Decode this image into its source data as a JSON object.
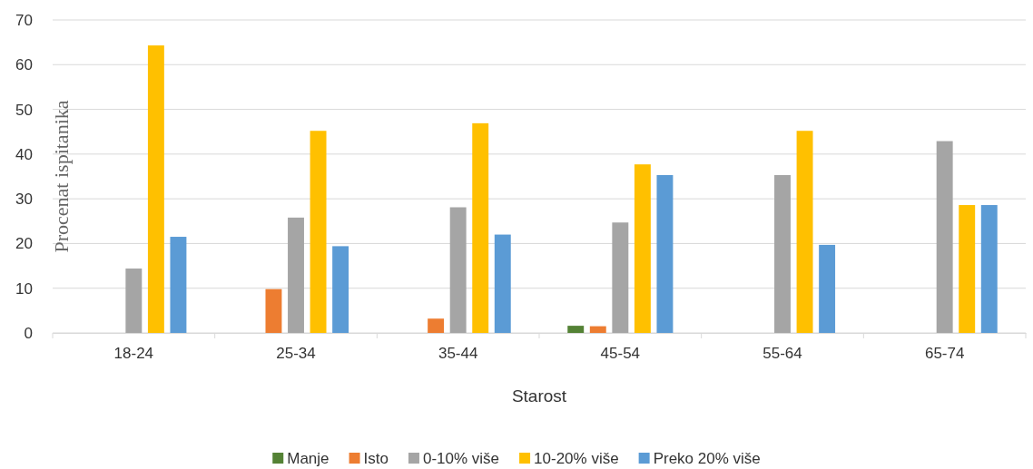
{
  "chart_data": {
    "type": "bar",
    "xlabel": "Starost",
    "ylabel": "Procenat ispitanika",
    "categories": [
      "18-24",
      "25-34",
      "35-44",
      "45-54",
      "55-64",
      "65-74"
    ],
    "series": [
      {
        "name": "Manje",
        "color": "#548235",
        "values": [
          0,
          0,
          0,
          1.6,
          0,
          0
        ]
      },
      {
        "name": "Isto",
        "color": "#ed7d31",
        "values": [
          0,
          9.8,
          3.2,
          1.5,
          0,
          0
        ]
      },
      {
        "name": "0-10% više",
        "color": "#a5a5a5",
        "values": [
          14.4,
          25.8,
          28.1,
          24.7,
          35.3,
          42.9
        ]
      },
      {
        "name": "10-20% više",
        "color": "#ffc000",
        "values": [
          64.3,
          45.2,
          46.9,
          37.7,
          45.2,
          28.6
        ]
      },
      {
        "name": "Preko 20% više",
        "color": "#5b9bd5",
        "values": [
          21.5,
          19.4,
          22.0,
          35.3,
          19.7,
          28.6
        ]
      }
    ],
    "ylim": [
      0,
      70
    ],
    "yticks": [
      0,
      10,
      20,
      30,
      40,
      50,
      60,
      70
    ],
    "grid": "y",
    "legend": "bottom"
  }
}
